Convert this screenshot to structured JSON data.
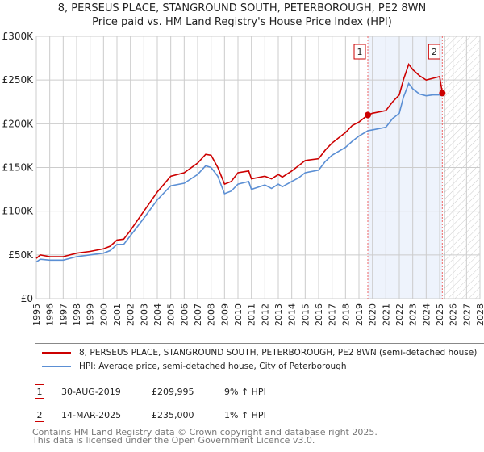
{
  "chart_data": {
    "type": "line",
    "title": "8, PERSEUS PLACE, STANGROUND SOUTH, PETERBOROUGH, PE2 8WN",
    "subtitle": "Price paid vs. HM Land Registry's House Price Index (HPI)",
    "xlim": [
      1995,
      2028
    ],
    "ylim": [
      0,
      300000
    ],
    "grid": true,
    "y_ticks": [
      {
        "v": 0,
        "label": "£0"
      },
      {
        "v": 50000,
        "label": "£50K"
      },
      {
        "v": 100000,
        "label": "£100K"
      },
      {
        "v": 150000,
        "label": "£150K"
      },
      {
        "v": 200000,
        "label": "£200K"
      },
      {
        "v": 250000,
        "label": "£250K"
      },
      {
        "v": 300000,
        "label": "£300K"
      }
    ],
    "x_ticks": [
      "1995",
      "1996",
      "1997",
      "1998",
      "1999",
      "2000",
      "2001",
      "2002",
      "2003",
      "2004",
      "2005",
      "2006",
      "2007",
      "2008",
      "2009",
      "2010",
      "2011",
      "2012",
      "2013",
      "2014",
      "2015",
      "2016",
      "2017",
      "2018",
      "2019",
      "2020",
      "2021",
      "2022",
      "2023",
      "2024",
      "2025",
      "2026",
      "2027",
      "2028"
    ],
    "shaded_range": [
      2019.66,
      2025.2
    ],
    "forecast_hatch_from": 2025.35,
    "series": [
      {
        "name": "8, PERSEUS PLACE, STANGROUND SOUTH, PETERBOROUGH, PE2 8WN (semi-detached house)",
        "color": "#cc0000",
        "x": [
          1995,
          1995.3,
          1996,
          1997,
          1998,
          1999,
          2000,
          2000.5,
          2001,
          2001.5,
          2002,
          2003,
          2004,
          2005,
          2006,
          2007,
          2007.6,
          2008,
          2008.5,
          2009,
          2009.5,
          2010,
          2010.8,
          2011,
          2012,
          2012.5,
          2013,
          2013.3,
          2014,
          2014.5,
          2015,
          2016,
          2016.5,
          2017,
          2018,
          2018.5,
          2019,
          2019.66,
          2020,
          2021,
          2021.5,
          2022,
          2022.3,
          2022.7,
          2023,
          2023.5,
          2024,
          2024.5,
          2025,
          2025.2
        ],
        "y": [
          46000,
          50000,
          48000,
          48000,
          52000,
          54000,
          57000,
          60000,
          67000,
          68000,
          78000,
          100000,
          122000,
          140000,
          144000,
          155000,
          165000,
          164000,
          150000,
          131000,
          134000,
          144000,
          146000,
          137000,
          140000,
          137000,
          142000,
          139000,
          146000,
          152000,
          158000,
          160000,
          170000,
          178000,
          190000,
          198000,
          202000,
          209995,
          212000,
          215000,
          225000,
          233000,
          250000,
          268000,
          262000,
          255000,
          250000,
          252000,
          254000,
          235000
        ]
      },
      {
        "name": "HPI: Average price, semi-detached house, City of Peterborough",
        "color": "#5b8fd4",
        "x": [
          1995,
          1995.3,
          1996,
          1997,
          1998,
          1999,
          2000,
          2000.5,
          2001,
          2001.5,
          2002,
          2003,
          2004,
          2005,
          2006,
          2007,
          2007.6,
          2008,
          2008.5,
          2009,
          2009.5,
          2010,
          2010.8,
          2011,
          2012,
          2012.5,
          2013,
          2013.3,
          2014,
          2014.5,
          2015,
          2016,
          2016.5,
          2017,
          2018,
          2018.5,
          2019,
          2019.66,
          2020,
          2021,
          2021.5,
          2022,
          2022.3,
          2022.7,
          2023,
          2023.5,
          2024,
          2024.5,
          2025,
          2025.2
        ],
        "y": [
          42000,
          45000,
          44000,
          44000,
          48000,
          50000,
          52000,
          55000,
          62000,
          62000,
          72000,
          92000,
          113000,
          129000,
          132000,
          142000,
          152000,
          150000,
          140000,
          120000,
          123000,
          131000,
          134000,
          125000,
          130000,
          126000,
          131000,
          128000,
          134000,
          138000,
          144000,
          147000,
          157000,
          164000,
          173000,
          180000,
          186000,
          192000,
          193000,
          196000,
          206000,
          212000,
          230000,
          246000,
          240000,
          234000,
          232000,
          233000,
          233000,
          232000
        ]
      }
    ],
    "sales": [
      {
        "label": "1",
        "x": 2019.66,
        "y": 209995
      },
      {
        "label": "2",
        "x": 2025.2,
        "y": 235000
      }
    ]
  },
  "legend": {
    "items": [
      {
        "label": "8, PERSEUS PLACE, STANGROUND SOUTH, PETERBOROUGH, PE2 8WN (semi-detached house)",
        "color": "#cc0000"
      },
      {
        "label": "HPI: Average price, semi-detached house, City of Peterborough",
        "color": "#5b8fd4"
      }
    ]
  },
  "table": [
    {
      "num": "1",
      "date": "30-AUG-2019",
      "price": "£209,995",
      "hpi": "9% ↑ HPI"
    },
    {
      "num": "2",
      "date": "14-MAR-2025",
      "price": "£235,000",
      "hpi": "1% ↑ HPI"
    }
  ],
  "footer": {
    "line1": "Contains HM Land Registry data © Crown copyright and database right 2025.",
    "line2": "This data is licensed under the Open Government Licence v3.0."
  }
}
